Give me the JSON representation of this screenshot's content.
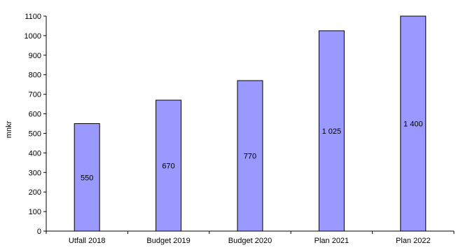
{
  "chart_data": {
    "type": "bar",
    "title": "",
    "xlabel": "",
    "ylabel": "mnkr",
    "categories": [
      "Utfall 2018",
      "Budget 2019",
      "Budget 2020",
      "Plan 2021",
      "Plan 2022"
    ],
    "values": [
      550,
      670,
      770,
      1025,
      1400
    ],
    "data_labels": [
      "550",
      "670",
      "770",
      "1 025",
      "1 400"
    ],
    "ylim": [
      0,
      1100
    ],
    "yticks": [
      0,
      100,
      200,
      300,
      400,
      500,
      600,
      700,
      800,
      900,
      1000,
      1100
    ],
    "grid": false,
    "legend": "none",
    "bar_color": "#9999ff",
    "bar_edge_color": "#000000"
  }
}
